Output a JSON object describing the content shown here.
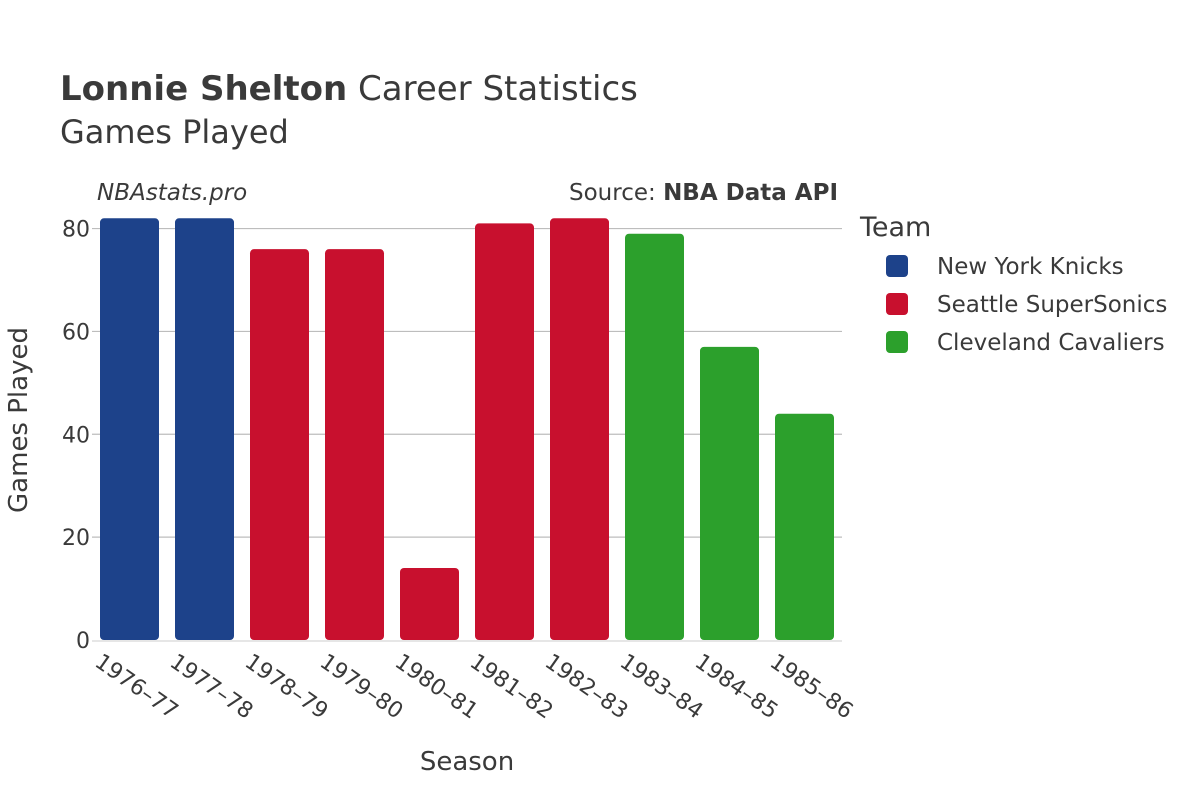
{
  "title": {
    "bold": "Lonnie Shelton",
    "rest": " Career Statistics",
    "subtitle": "Games Played"
  },
  "watermark": "NBAstats.pro",
  "source": {
    "prefix": "Source: ",
    "name": "NBA Data API"
  },
  "legend": {
    "title": "Team",
    "placement": "right"
  },
  "chart_data": {
    "type": "bar",
    "xlabel": "Season",
    "ylabel": "Games Played",
    "ylim": [
      0,
      84
    ],
    "yticks": [
      0,
      20,
      40,
      60,
      80
    ],
    "grid": true,
    "categories": [
      "1976–77",
      "1977–78",
      "1978–79",
      "1979–80",
      "1980–81",
      "1981–82",
      "1982–83",
      "1983–84",
      "1984–85",
      "1985–86"
    ],
    "values": [
      82,
      82,
      76,
      76,
      14,
      81,
      82,
      79,
      57,
      44
    ],
    "teams": [
      "New York Knicks",
      "New York Knicks",
      "Seattle SuperSonics",
      "Seattle SuperSonics",
      "Seattle SuperSonics",
      "Seattle SuperSonics",
      "Seattle SuperSonics",
      "Cleveland Cavaliers",
      "Cleveland Cavaliers",
      "Cleveland Cavaliers"
    ],
    "series": [
      {
        "name": "New York Knicks",
        "color": "#1d428a"
      },
      {
        "name": "Seattle SuperSonics",
        "color": "#c8102e"
      },
      {
        "name": "Cleveland Cavaliers",
        "color": "#2ca02c"
      }
    ]
  }
}
